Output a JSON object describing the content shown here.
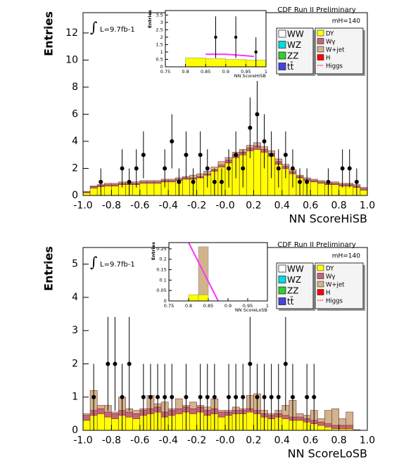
{
  "chart_data": [
    {
      "type": "histogram",
      "role": "main",
      "annotations": [
        "CDF Run II Preliminary",
        "mH=140",
        "L=9.7fb-1"
      ],
      "x_label": "NN ScoreHiSB",
      "y_label": "Entries",
      "xlim": [
        -1,
        1
      ],
      "ylim": [
        0,
        13.5
      ],
      "xticks": [
        {
          "value": -1,
          "label": "-1.0"
        },
        -0.8,
        -0.6,
        -0.4,
        -0.2,
        {
          "value": 0,
          "label": "-0.0"
        },
        0.2,
        0.4,
        0.6,
        0.8,
        {
          "value": 1,
          "label": "1.0"
        }
      ],
      "yticks": [
        0,
        2,
        4,
        6,
        8,
        10,
        12
      ],
      "bins": [
        -1,
        -0.95,
        -0.9,
        -0.85,
        -0.8,
        -0.75,
        -0.7,
        -0.65,
        -0.6,
        -0.55,
        -0.5,
        -0.45,
        -0.4,
        -0.35,
        -0.3,
        -0.25,
        -0.2,
        -0.15,
        -0.1,
        -0.05,
        0,
        0.05,
        0.1,
        0.15,
        0.2,
        0.25,
        0.3,
        0.35,
        0.4,
        0.45,
        0.5,
        0.55,
        0.6,
        0.65,
        0.7,
        0.75,
        0.8,
        0.85,
        0.9,
        0.95,
        1
      ],
      "series": [
        {
          "name": "DY",
          "color": "#ffff00",
          "values": [
            0.2,
            0.55,
            0.65,
            0.7,
            0.7,
            0.8,
            0.8,
            0.8,
            0.9,
            0.9,
            0.9,
            1.0,
            1.0,
            1.1,
            1.2,
            1.2,
            1.3,
            1.5,
            1.8,
            2.1,
            2.4,
            2.8,
            3.0,
            3.3,
            3.4,
            3.2,
            2.9,
            2.3,
            2.0,
            1.6,
            1.3,
            1.1,
            1.0,
            0.9,
            0.8,
            0.8,
            0.7,
            0.7,
            0.6,
            0.4
          ]
        },
        {
          "name": "Wγ",
          "color": "#c86478",
          "values": [
            0.05,
            0.1,
            0.1,
            0.1,
            0.1,
            0.1,
            0.1,
            0.1,
            0.1,
            0.1,
            0.1,
            0.1,
            0.1,
            0.1,
            0.1,
            0.1,
            0.1,
            0.1,
            0.1,
            0.15,
            0.2,
            0.2,
            0.2,
            0.2,
            0.25,
            0.2,
            0.2,
            0.2,
            0.15,
            0.15,
            0.1,
            0.1,
            0.1,
            0.1,
            0.1,
            0.1,
            0.1,
            0.1,
            0.1,
            0.1
          ]
        },
        {
          "name": "W+jet",
          "color": "#d2b48c",
          "values": [
            0.05,
            0.05,
            0.05,
            0.1,
            0.1,
            0.1,
            0.1,
            0.1,
            0.1,
            0.1,
            0.1,
            0.1,
            0.1,
            0.1,
            0.1,
            0.2,
            0.2,
            0.2,
            0.2,
            0.25,
            0.2,
            0.2,
            0.2,
            0.2,
            0.25,
            0.2,
            0.2,
            0.2,
            0.15,
            0.15,
            0.1,
            0.1,
            0.1,
            0.1,
            0.1,
            0.1,
            0.1,
            0.1,
            0.1,
            0.1
          ]
        }
      ],
      "legend_left": [
        {
          "name": "WW",
          "color": "#ffffff"
        },
        {
          "name": "WZ",
          "color": "#00dddd"
        },
        {
          "name": "ZZ",
          "color": "#33cc33"
        },
        {
          "name": "tt̄",
          "color": "#4444dd"
        }
      ],
      "legend_extra": [
        {
          "name": "H",
          "color": "#ff0000"
        },
        {
          "name": "Higgs",
          "color": "#ff0000",
          "style": "line"
        }
      ],
      "data": {
        "values": [
          null,
          null,
          1,
          null,
          null,
          2,
          1,
          2,
          3,
          null,
          null,
          2,
          4,
          1,
          3,
          1,
          3,
          2,
          1,
          1,
          2,
          3,
          2,
          5,
          6,
          4,
          3,
          2,
          3,
          2,
          1,
          1,
          null,
          null,
          1,
          null,
          2,
          2,
          1,
          null
        ],
        "errors": [
          null,
          null,
          1,
          null,
          null,
          1.41,
          1,
          1.41,
          1.73,
          null,
          null,
          1.41,
          2,
          1,
          1.73,
          1,
          1.73,
          1.41,
          1,
          1,
          1.41,
          1.73,
          1.41,
          2.24,
          2.45,
          2,
          1.73,
          1.41,
          1.73,
          1.41,
          1,
          1,
          null,
          null,
          1,
          null,
          1.41,
          1.41,
          1,
          null
        ]
      }
    },
    {
      "type": "histogram",
      "role": "inset",
      "x_label": "NN ScoreHiSB",
      "y_label": "Entries",
      "xlim": [
        0.75,
        1
      ],
      "ylim": [
        0,
        3.8
      ],
      "xticks": [
        0.75,
        0.8,
        0.85,
        0.9,
        0.95,
        1
      ],
      "yticks": [
        0,
        0.5,
        1,
        1.5,
        2,
        2.5,
        3,
        3.5
      ],
      "bins": [
        0.8,
        0.85,
        0.9,
        0.95,
        1
      ],
      "series": [
        {
          "name": "DY",
          "color": "#ffff00",
          "values": [
            0.6,
            0.55,
            0.5,
            0.45
          ]
        }
      ],
      "curve": {
        "color": "#ff33ff",
        "x": [
          0.85,
          0.9,
          0.95,
          0.97
        ],
        "y": [
          0.85,
          0.85,
          0.75,
          0.7
        ]
      },
      "data": {
        "values": [
          null,
          2,
          2,
          1
        ],
        "errors": [
          null,
          1.41,
          1.41,
          1
        ]
      }
    },
    {
      "type": "histogram",
      "role": "main",
      "annotations": [
        "CDF Run II Preliminary",
        "mH=140",
        "L=9.7fb-1"
      ],
      "x_label": "NN ScoreLoSB",
      "y_label": "Entries",
      "xlim": [
        -1,
        1
      ],
      "ylim": [
        0,
        5.5
      ],
      "xticks": [
        {
          "value": -1,
          "label": "-1.0"
        },
        -0.8,
        -0.6,
        -0.4,
        -0.2,
        {
          "value": 0,
          "label": "-0.0"
        },
        0.2,
        0.4,
        0.6,
        0.8,
        {
          "value": 1,
          "label": "1.0"
        }
      ],
      "yticks": [
        0,
        1,
        2,
        3,
        4,
        5
      ],
      "bins": [
        -1,
        -0.95,
        -0.9,
        -0.85,
        -0.8,
        -0.75,
        -0.7,
        -0.65,
        -0.6,
        -0.55,
        -0.5,
        -0.45,
        -0.4,
        -0.35,
        -0.3,
        -0.25,
        -0.2,
        -0.15,
        -0.1,
        -0.05,
        0,
        0.05,
        0.1,
        0.15,
        0.2,
        0.25,
        0.3,
        0.35,
        0.4,
        0.45,
        0.5,
        0.55,
        0.6,
        0.65,
        0.7,
        0.75,
        0.8,
        0.85,
        0.9,
        0.95,
        1
      ],
      "series": [
        {
          "name": "DY",
          "color": "#ffff00",
          "values": [
            0.3,
            0.45,
            0.5,
            0.4,
            0.35,
            0.45,
            0.4,
            0.35,
            0.45,
            0.5,
            0.55,
            0.4,
            0.45,
            0.5,
            0.55,
            0.5,
            0.55,
            0.45,
            0.5,
            0.4,
            0.45,
            0.5,
            0.5,
            0.55,
            0.5,
            0.4,
            0.35,
            0.4,
            0.35,
            0.3,
            0.3,
            0.25,
            0.2,
            0.15,
            0.1,
            0.05,
            0.05,
            0.05,
            0.02,
            0
          ]
        },
        {
          "name": "Wγ",
          "color": "#c86478",
          "values": [
            0.15,
            0.15,
            0.15,
            0.15,
            0.15,
            0.15,
            0.15,
            0.15,
            0.15,
            0.15,
            0.15,
            0.15,
            0.15,
            0.15,
            0.15,
            0.15,
            0.15,
            0.15,
            0.15,
            0.15,
            0.1,
            0.1,
            0.1,
            0.1,
            0.1,
            0.1,
            0.1,
            0.1,
            0.1,
            0.1,
            0.1,
            0.1,
            0.1,
            0.1,
            0.1,
            0.1,
            0.1,
            0.1,
            0,
            0
          ]
        },
        {
          "name": "W+jet",
          "color": "#d2b48c",
          "values": [
            0.05,
            0.6,
            0.1,
            0.2,
            0.05,
            0.4,
            0.1,
            0.1,
            0.05,
            0.4,
            0.1,
            0.3,
            0.05,
            0.3,
            0.05,
            0.2,
            0.05,
            0.1,
            0.3,
            0.05,
            0.05,
            0.1,
            0.05,
            0.4,
            0.5,
            0.1,
            0.05,
            0.1,
            0.3,
            0.5,
            0.1,
            0.1,
            0.3,
            0.1,
            0.4,
            0.5,
            0.2,
            0.4,
            0,
            0
          ]
        }
      ],
      "legend_left": [
        {
          "name": "WW",
          "color": "#ffffff"
        },
        {
          "name": "WZ",
          "color": "#00dddd"
        },
        {
          "name": "ZZ",
          "color": "#33cc33"
        },
        {
          "name": "tt̄",
          "color": "#4444dd"
        }
      ],
      "legend_extra": [
        {
          "name": "H",
          "color": "#ff0000"
        },
        {
          "name": "Higgs",
          "color": "#ff0000",
          "style": "line"
        }
      ],
      "data": {
        "values": [
          null,
          1,
          null,
          2,
          2,
          1,
          2,
          null,
          1,
          1,
          1,
          1,
          1,
          null,
          1,
          null,
          1,
          1,
          1,
          null,
          1,
          1,
          1,
          2,
          1,
          1,
          1,
          1,
          2,
          1,
          null,
          1,
          1,
          null,
          null,
          null,
          null,
          null,
          null,
          null
        ],
        "errors": [
          null,
          1,
          null,
          1.41,
          1.41,
          1,
          1.41,
          null,
          1,
          1,
          1,
          1,
          1,
          null,
          1,
          null,
          1,
          1,
          1,
          null,
          1,
          1,
          1,
          1.41,
          1,
          1,
          1,
          1,
          1.41,
          1,
          null,
          1,
          1,
          null,
          null,
          null,
          null,
          null,
          null,
          null
        ]
      }
    },
    {
      "type": "histogram",
      "role": "inset",
      "x_label": "NN ScoreLoSB",
      "y_label": "Entries",
      "xlim": [
        0.75,
        1
      ],
      "ylim": [
        0,
        0.28
      ],
      "xticks": [
        0.75,
        0.8,
        0.85,
        0.9,
        0.95,
        1
      ],
      "yticks": [
        0,
        0.05,
        0.1,
        0.15,
        0.2,
        0.25
      ],
      "bins": [
        0.8,
        0.825,
        0.85,
        0.875
      ],
      "series": [
        {
          "name": "DY",
          "color": "#ffff00",
          "values": [
            0.03,
            0.03,
            0
          ]
        },
        {
          "name": "W+jet",
          "color": "#d2b48c",
          "values": [
            0,
            0.23,
            0
          ]
        }
      ],
      "curve": {
        "color": "#ff33ff",
        "x": [
          0.8,
          0.875
        ],
        "y": [
          0.28,
          0
        ]
      },
      "data": {
        "values": [
          null,
          null,
          null
        ],
        "errors": [
          null,
          null,
          null
        ]
      }
    }
  ]
}
